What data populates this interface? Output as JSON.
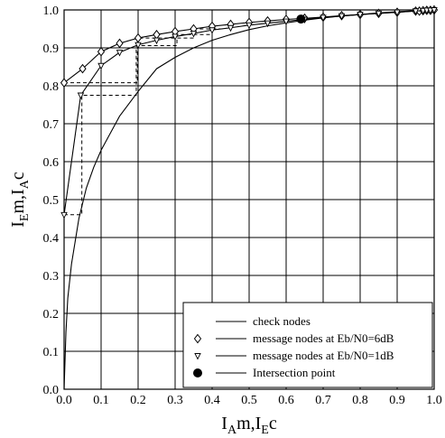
{
  "chart_data": {
    "type": "line",
    "xlabel_parts": [
      "I",
      "A",
      "m,I",
      "E",
      "c"
    ],
    "ylabel_parts": [
      "I",
      "E",
      "m,I",
      "A",
      "c"
    ],
    "xlim": [
      0.0,
      1.0
    ],
    "ylim": [
      0.0,
      1.0
    ],
    "x_ticks": [
      "0.0",
      "0.1",
      "0.2",
      "0.3",
      "0.4",
      "0.5",
      "0.6",
      "0.7",
      "0.8",
      "0.9",
      "1.0"
    ],
    "y_ticks": [
      "0.0",
      "0.1",
      "0.2",
      "0.3",
      "0.4",
      "0.5",
      "0.6",
      "0.7",
      "0.8",
      "0.9",
      "1.0"
    ],
    "grid": true,
    "legend_position": "bottom-right",
    "series": [
      {
        "name": "check nodes",
        "marker": "none",
        "points": [
          [
            0.0,
            0.0
          ],
          [
            0.005,
            0.15
          ],
          [
            0.01,
            0.24
          ],
          [
            0.02,
            0.33
          ],
          [
            0.04,
            0.45
          ],
          [
            0.06,
            0.53
          ],
          [
            0.08,
            0.585
          ],
          [
            0.1,
            0.63
          ],
          [
            0.15,
            0.72
          ],
          [
            0.2,
            0.785
          ],
          [
            0.25,
            0.845
          ],
          [
            0.3,
            0.875
          ],
          [
            0.35,
            0.9
          ],
          [
            0.4,
            0.92
          ],
          [
            0.45,
            0.935
          ],
          [
            0.5,
            0.948
          ],
          [
            0.55,
            0.958
          ],
          [
            0.6,
            0.966
          ],
          [
            0.65,
            0.973
          ],
          [
            0.7,
            0.979
          ],
          [
            0.75,
            0.984
          ],
          [
            0.8,
            0.988
          ],
          [
            0.85,
            0.992
          ],
          [
            0.9,
            0.995
          ],
          [
            0.95,
            0.998
          ],
          [
            1.0,
            1.0
          ]
        ]
      },
      {
        "name": "message nodes at Eb/N0=6dB",
        "marker": "diamond",
        "points": [
          [
            0.0,
            0.808
          ],
          [
            0.05,
            0.845
          ],
          [
            0.1,
            0.89
          ],
          [
            0.15,
            0.912
          ],
          [
            0.2,
            0.926
          ],
          [
            0.25,
            0.935
          ],
          [
            0.3,
            0.943
          ],
          [
            0.35,
            0.95
          ],
          [
            0.4,
            0.957
          ],
          [
            0.45,
            0.962
          ],
          [
            0.5,
            0.967
          ],
          [
            0.55,
            0.971
          ],
          [
            0.6,
            0.975
          ],
          [
            0.65,
            0.978
          ],
          [
            0.7,
            0.981
          ],
          [
            0.75,
            0.985
          ],
          [
            0.8,
            0.988
          ],
          [
            0.85,
            0.991
          ],
          [
            0.9,
            0.994
          ],
          [
            0.95,
            0.997
          ],
          [
            0.96,
            0.997
          ],
          [
            0.97,
            0.998
          ],
          [
            0.98,
            0.999
          ],
          [
            0.99,
            0.999
          ],
          [
            1.0,
            1.0
          ]
        ]
      },
      {
        "name": "message nodes at Eb/N0=1dB",
        "marker": "triangle-down",
        "points": [
          [
            0.0,
            0.46
          ],
          [
            0.045,
            0.775
          ],
          [
            0.1,
            0.853
          ],
          [
            0.15,
            0.888
          ],
          [
            0.2,
            0.908
          ],
          [
            0.25,
            0.92
          ],
          [
            0.3,
            0.93
          ],
          [
            0.35,
            0.938
          ],
          [
            0.4,
            0.947
          ],
          [
            0.45,
            0.953
          ],
          [
            0.5,
            0.96
          ],
          [
            0.55,
            0.965
          ],
          [
            0.6,
            0.97
          ],
          [
            0.65,
            0.975
          ],
          [
            0.7,
            0.98
          ],
          [
            0.75,
            0.984
          ],
          [
            0.8,
            0.988
          ],
          [
            0.85,
            0.991
          ],
          [
            0.9,
            0.994
          ],
          [
            0.95,
            0.997
          ],
          [
            0.97,
            0.998
          ],
          [
            0.98,
            0.999
          ],
          [
            0.99,
            0.999
          ],
          [
            1.0,
            1.0
          ]
        ]
      },
      {
        "name": "Intersection point",
        "marker": "filled-circle",
        "points": [
          [
            0.64,
            0.976
          ]
        ]
      }
    ],
    "trajectories": [
      {
        "style": "dashed",
        "points": [
          [
            0.0,
            0.46
          ],
          [
            0.048,
            0.46
          ],
          [
            0.048,
            0.775
          ],
          [
            0.195,
            0.775
          ],
          [
            0.195,
            0.906
          ],
          [
            0.305,
            0.906
          ],
          [
            0.305,
            0.935
          ],
          [
            0.4,
            0.935
          ]
        ]
      },
      {
        "style": "dashed",
        "points": [
          [
            0.0,
            0.808
          ],
          [
            0.198,
            0.808
          ],
          [
            0.198,
            0.926
          ],
          [
            0.35,
            0.926
          ],
          [
            0.35,
            0.95
          ],
          [
            0.43,
            0.95
          ]
        ]
      }
    ]
  },
  "legend": {
    "items": [
      {
        "label": "check nodes",
        "marker": "none"
      },
      {
        "label": "message nodes at Eb/N0=6dB",
        "marker": "diamond"
      },
      {
        "label": "message nodes at Eb/N0=1dB",
        "marker": "triangle-down"
      },
      {
        "label": "Intersection point",
        "marker": "filled-circle"
      }
    ]
  },
  "colors": {
    "line": "#000000",
    "background": "#ffffff"
  }
}
